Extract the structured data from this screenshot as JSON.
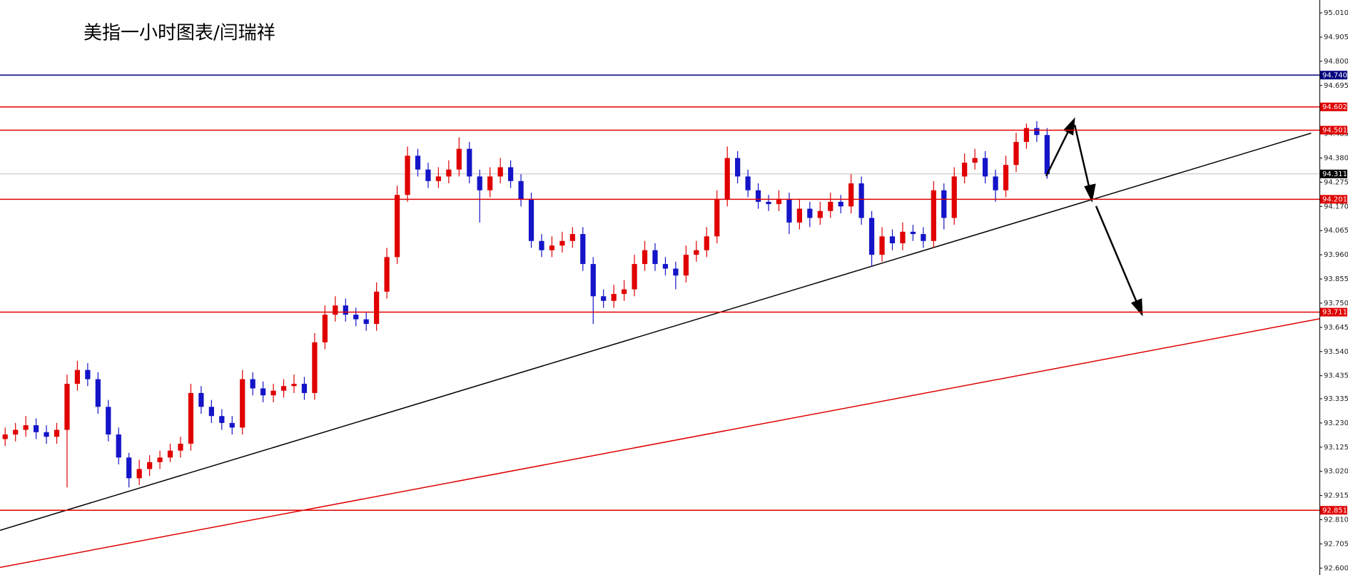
{
  "chart_data": {
    "type": "candlestick",
    "title": "美指一小时图表/闫瑞祥",
    "up_color": "#e00000",
    "down_color": "#1414c8",
    "xlim": [
      -0.5,
      127.4
    ],
    "ylim": [
      92.57,
      95.066
    ],
    "yticks": [
      {
        "value": 95.01,
        "label": "95.010"
      },
      {
        "value": 94.905,
        "label": "94.905"
      },
      {
        "value": 94.8,
        "label": "94.800"
      },
      {
        "value": 94.695,
        "label": "94.695"
      },
      {
        "value": 94.485,
        "label": "94.485"
      },
      {
        "value": 94.38,
        "label": "94.380"
      },
      {
        "value": 94.275,
        "label": "94.275"
      },
      {
        "value": 94.17,
        "label": "94.170"
      },
      {
        "value": 94.065,
        "label": "94.065"
      },
      {
        "value": 93.96,
        "label": "93.960"
      },
      {
        "value": 93.855,
        "label": "93.855"
      },
      {
        "value": 93.75,
        "label": "93.750"
      },
      {
        "value": 93.645,
        "label": "93.645"
      },
      {
        "value": 93.54,
        "label": "93.540"
      },
      {
        "value": 93.435,
        "label": "93.435"
      },
      {
        "value": 93.335,
        "label": "93.335"
      },
      {
        "value": 93.23,
        "label": "93.230"
      },
      {
        "value": 93.125,
        "label": "93.125"
      },
      {
        "value": 93.02,
        "label": "93.020"
      },
      {
        "value": 92.915,
        "label": "92.915"
      },
      {
        "value": 92.81,
        "label": "92.810"
      },
      {
        "value": 92.705,
        "label": "92.705"
      },
      {
        "value": 92.6,
        "label": "92.600"
      }
    ],
    "levels": [
      {
        "value": 94.74,
        "label": "94.740",
        "color": "#000080"
      },
      {
        "value": 94.602,
        "label": "94.602",
        "color": "#e00000"
      },
      {
        "value": 94.501,
        "label": "94.501",
        "color": "#e00000"
      },
      {
        "value": 94.201,
        "label": "94.201",
        "color": "#e00000"
      },
      {
        "value": 93.711,
        "label": "93.711",
        "color": "#e00000"
      },
      {
        "value": 92.851,
        "label": "92.851",
        "color": "#e00000"
      }
    ],
    "current_price": {
      "value": 94.311,
      "label": "94.311",
      "color": "#c0c0c0"
    },
    "trendlines": [
      {
        "from": [
          -0.5,
          92.764
        ],
        "to": [
          126.6,
          94.488
        ],
        "color": "#000000"
      },
      {
        "from": [
          -0.5,
          92.603
        ],
        "to": [
          127.4,
          93.682
        ],
        "color": "#e00000"
      }
    ],
    "candles": [
      [
        93.16,
        93.21,
        93.13,
        93.18
      ],
      [
        93.18,
        93.23,
        93.15,
        93.2
      ],
      [
        93.2,
        93.26,
        93.17,
        93.22
      ],
      [
        93.22,
        93.25,
        93.16,
        93.19
      ],
      [
        93.19,
        93.22,
        93.14,
        93.17
      ],
      [
        93.17,
        93.23,
        93.14,
        93.2
      ],
      [
        93.2,
        93.44,
        92.95,
        93.4
      ],
      [
        93.4,
        93.5,
        93.37,
        93.46
      ],
      [
        93.46,
        93.49,
        93.39,
        93.42
      ],
      [
        93.42,
        93.45,
        93.27,
        93.3
      ],
      [
        93.3,
        93.33,
        93.15,
        93.18
      ],
      [
        93.18,
        93.21,
        93.05,
        93.08
      ],
      [
        93.08,
        93.1,
        92.95,
        92.99
      ],
      [
        92.99,
        93.07,
        92.96,
        93.03
      ],
      [
        93.03,
        93.09,
        93.0,
        93.06
      ],
      [
        93.06,
        93.11,
        93.03,
        93.08
      ],
      [
        93.08,
        93.14,
        93.06,
        93.11
      ],
      [
        93.11,
        93.17,
        93.08,
        93.14
      ],
      [
        93.14,
        93.4,
        93.11,
        93.36
      ],
      [
        93.36,
        93.39,
        93.27,
        93.3
      ],
      [
        93.3,
        93.33,
        93.23,
        93.26
      ],
      [
        93.26,
        93.29,
        93.2,
        93.23
      ],
      [
        93.23,
        93.26,
        93.18,
        93.21
      ],
      [
        93.21,
        93.46,
        93.18,
        93.42
      ],
      [
        93.42,
        93.45,
        93.35,
        93.38
      ],
      [
        93.38,
        93.41,
        93.32,
        93.35
      ],
      [
        93.35,
        93.4,
        93.32,
        93.37
      ],
      [
        93.37,
        93.42,
        93.34,
        93.39
      ],
      [
        93.39,
        93.44,
        93.36,
        93.4
      ],
      [
        93.4,
        93.43,
        93.33,
        93.36
      ],
      [
        93.36,
        93.62,
        93.33,
        93.58
      ],
      [
        93.58,
        93.74,
        93.55,
        93.7
      ],
      [
        93.7,
        93.78,
        93.67,
        93.74
      ],
      [
        93.74,
        93.77,
        93.67,
        93.7
      ],
      [
        93.7,
        93.73,
        93.65,
        93.68
      ],
      [
        93.68,
        93.71,
        93.63,
        93.66
      ],
      [
        93.66,
        93.84,
        93.63,
        93.8
      ],
      [
        93.8,
        93.99,
        93.77,
        93.95
      ],
      [
        93.95,
        94.26,
        93.92,
        94.22
      ],
      [
        94.22,
        94.43,
        94.19,
        94.39
      ],
      [
        94.39,
        94.42,
        94.3,
        94.33
      ],
      [
        94.33,
        94.36,
        94.25,
        94.28
      ],
      [
        94.28,
        94.34,
        94.25,
        94.3
      ],
      [
        94.3,
        94.37,
        94.27,
        94.33
      ],
      [
        94.33,
        94.47,
        94.3,
        94.42
      ],
      [
        94.42,
        94.45,
        94.27,
        94.3
      ],
      [
        94.3,
        94.33,
        94.1,
        94.24
      ],
      [
        94.24,
        94.34,
        94.21,
        94.3
      ],
      [
        94.3,
        94.38,
        94.27,
        94.34
      ],
      [
        94.34,
        94.37,
        94.25,
        94.28
      ],
      [
        94.28,
        94.31,
        94.17,
        94.2
      ],
      [
        94.2,
        94.23,
        93.99,
        94.02
      ],
      [
        94.02,
        94.05,
        93.95,
        93.98
      ],
      [
        93.98,
        94.04,
        93.95,
        94.0
      ],
      [
        94.0,
        94.06,
        93.97,
        94.02
      ],
      [
        94.02,
        94.08,
        93.99,
        94.05
      ],
      [
        94.05,
        94.08,
        93.89,
        93.92
      ],
      [
        93.92,
        93.95,
        93.66,
        93.78
      ],
      [
        93.78,
        93.81,
        93.73,
        93.76
      ],
      [
        93.76,
        93.83,
        93.73,
        93.79
      ],
      [
        93.79,
        93.85,
        93.76,
        93.81
      ],
      [
        93.81,
        93.96,
        93.78,
        93.92
      ],
      [
        93.92,
        94.02,
        93.89,
        93.98
      ],
      [
        93.98,
        94.01,
        93.89,
        93.92
      ],
      [
        93.92,
        93.95,
        93.87,
        93.9
      ],
      [
        93.9,
        93.93,
        93.81,
        93.87
      ],
      [
        93.87,
        94.0,
        93.84,
        93.96
      ],
      [
        93.96,
        94.02,
        93.93,
        93.98
      ],
      [
        93.98,
        94.08,
        93.95,
        94.04
      ],
      [
        94.04,
        94.24,
        94.01,
        94.2
      ],
      [
        94.2,
        94.43,
        94.17,
        94.38
      ],
      [
        94.38,
        94.41,
        94.27,
        94.3
      ],
      [
        94.3,
        94.33,
        94.21,
        94.24
      ],
      [
        94.24,
        94.27,
        94.16,
        94.19
      ],
      [
        94.19,
        94.22,
        94.15,
        94.18
      ],
      [
        94.18,
        94.24,
        94.15,
        94.2
      ],
      [
        94.2,
        94.23,
        94.05,
        94.1
      ],
      [
        94.1,
        94.2,
        94.07,
        94.16
      ],
      [
        94.16,
        94.19,
        94.08,
        94.12
      ],
      [
        94.12,
        94.19,
        94.09,
        94.15
      ],
      [
        94.15,
        94.23,
        94.12,
        94.19
      ],
      [
        94.19,
        94.22,
        94.14,
        94.17
      ],
      [
        94.17,
        94.31,
        94.14,
        94.27
      ],
      [
        94.27,
        94.3,
        94.09,
        94.12
      ],
      [
        94.12,
        94.15,
        93.91,
        93.96
      ],
      [
        93.96,
        94.08,
        93.93,
        94.04
      ],
      [
        94.04,
        94.07,
        93.98,
        94.01
      ],
      [
        94.01,
        94.1,
        93.98,
        94.06
      ],
      [
        94.06,
        94.09,
        94.02,
        94.05
      ],
      [
        94.05,
        94.08,
        93.99,
        94.02
      ],
      [
        94.02,
        94.28,
        93.99,
        94.24
      ],
      [
        94.24,
        94.27,
        94.07,
        94.12
      ],
      [
        94.12,
        94.34,
        94.09,
        94.3
      ],
      [
        94.3,
        94.4,
        94.27,
        94.36
      ],
      [
        94.36,
        94.42,
        94.33,
        94.38
      ],
      [
        94.38,
        94.41,
        94.27,
        94.3
      ],
      [
        94.3,
        94.33,
        94.19,
        94.24
      ],
      [
        94.24,
        94.39,
        94.21,
        94.35
      ],
      [
        94.35,
        94.49,
        94.32,
        94.45
      ],
      [
        94.45,
        94.53,
        94.42,
        94.51
      ],
      [
        94.51,
        94.54,
        94.45,
        94.48
      ],
      [
        94.48,
        94.51,
        94.29,
        94.31
      ]
    ]
  }
}
